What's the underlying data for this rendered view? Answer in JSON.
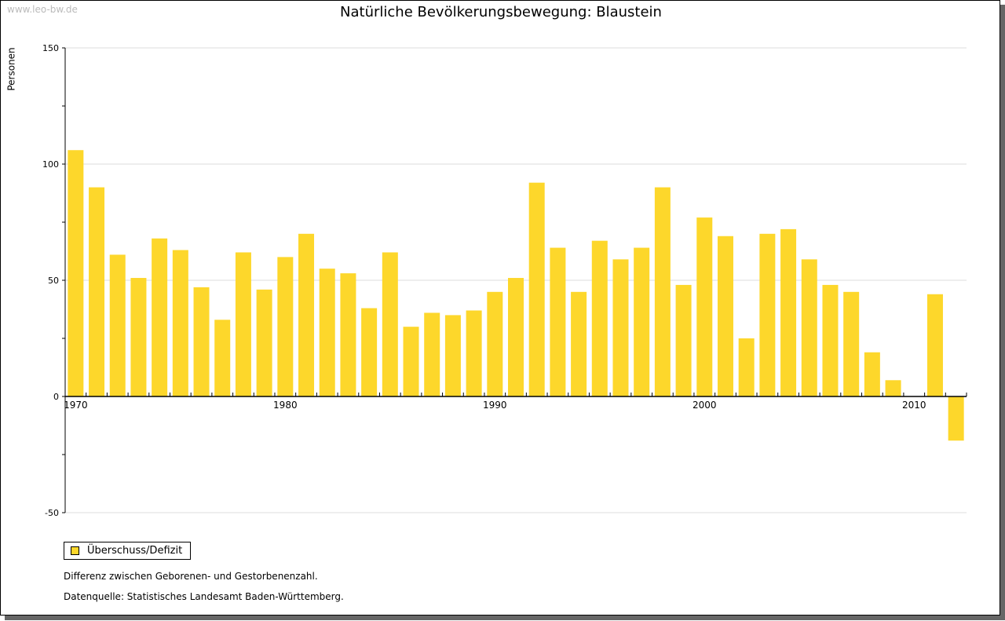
{
  "watermark": "www.leo-bw.de",
  "notes": {
    "desc": "Differenz zwischen Geborenen- und Gestorbenenzahl.",
    "source": "Datenquelle: Statistisches Landesamt Baden-Württemberg."
  },
  "chart_data": {
    "type": "bar",
    "title": "Natürliche Bevölkerungsbewegung: Blaustein",
    "xlabel": "",
    "ylabel": "Personen",
    "ylim": [
      -50,
      150
    ],
    "yticks": [
      -50,
      0,
      50,
      100,
      150
    ],
    "xtick_labels": [
      "1970",
      "1980",
      "1990",
      "2000",
      "2010"
    ],
    "grid": true,
    "legend": "bottom-left",
    "color": "#fdd72b",
    "categories": [
      1970,
      1971,
      1972,
      1973,
      1974,
      1975,
      1976,
      1977,
      1978,
      1979,
      1980,
      1981,
      1982,
      1983,
      1984,
      1985,
      1986,
      1987,
      1988,
      1989,
      1990,
      1991,
      1992,
      1993,
      1994,
      1995,
      1996,
      1997,
      1998,
      1999,
      2000,
      2001,
      2002,
      2003,
      2004,
      2005,
      2006,
      2007,
      2008,
      2009,
      2010,
      2011,
      2012
    ],
    "series": [
      {
        "name": "Überschuss/Defizit",
        "values": [
          106,
          90,
          61,
          51,
          68,
          63,
          47,
          33,
          62,
          46,
          60,
          70,
          55,
          53,
          38,
          62,
          30,
          36,
          35,
          37,
          45,
          51,
          92,
          64,
          45,
          67,
          59,
          64,
          90,
          48,
          77,
          69,
          25,
          70,
          72,
          59,
          48,
          45,
          19,
          7,
          0,
          44,
          -19
        ]
      }
    ]
  }
}
